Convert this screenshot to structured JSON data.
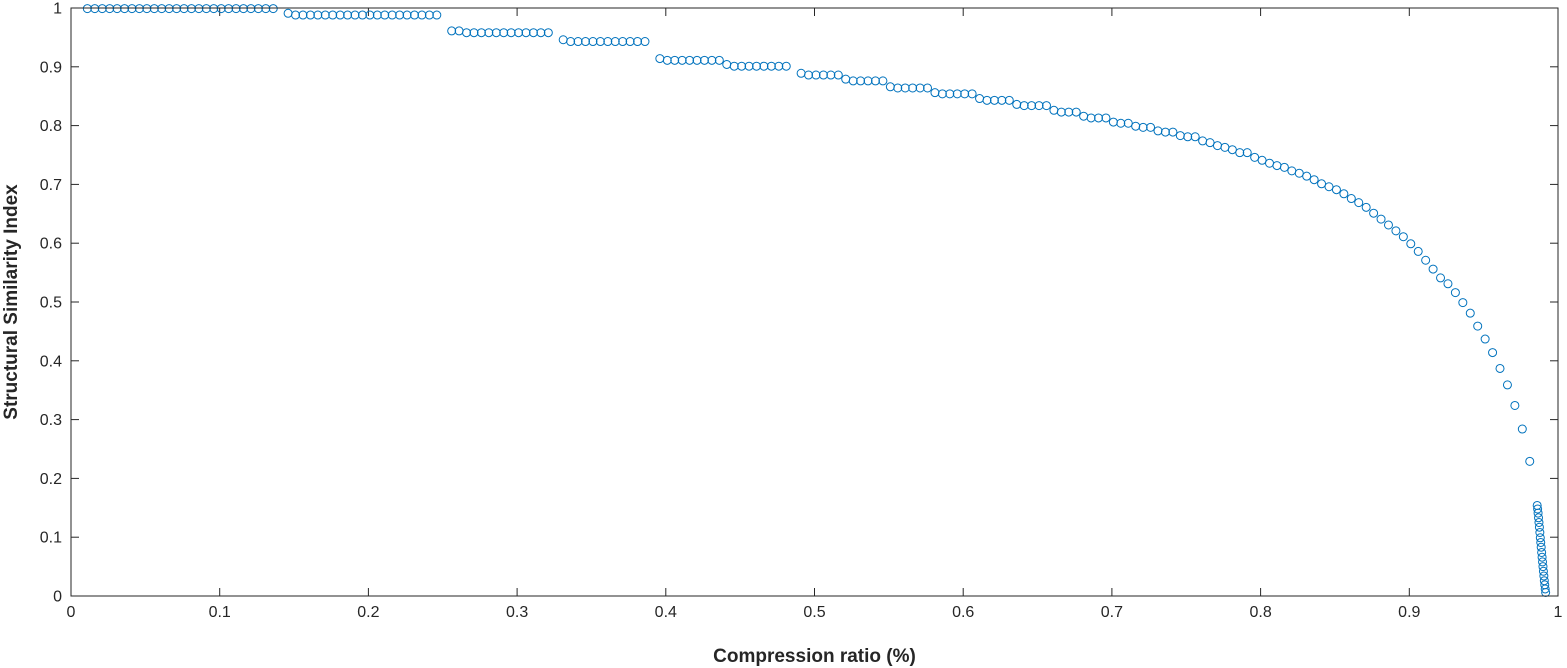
{
  "chart_data": {
    "type": "scatter",
    "xlabel": "Compression ratio (%)",
    "ylabel": "Structural Similarity Index",
    "xlim": [
      0,
      1
    ],
    "ylim": [
      0,
      1
    ],
    "xticks": [
      0,
      0.1,
      0.2,
      0.3,
      0.4,
      0.5,
      0.6,
      0.7,
      0.8,
      0.9,
      1
    ],
    "xtick_labels": [
      "0",
      "0.1",
      "0.2",
      "0.3",
      "0.4",
      "0.5",
      "0.6",
      "0.7",
      "0.8",
      "0.9",
      "1"
    ],
    "yticks": [
      0,
      0.1,
      0.2,
      0.3,
      0.4,
      0.5,
      0.6,
      0.7,
      0.8,
      0.9,
      1
    ],
    "ytick_labels": [
      "0",
      "0.1",
      "0.2",
      "0.3",
      "0.4",
      "0.5",
      "0.6",
      "0.7",
      "0.8",
      "0.9",
      "1"
    ],
    "grid": false,
    "box": true,
    "marker": "open-circle",
    "marker_color": "#0072bd",
    "series": [
      {
        "points": [
          [
            0.011,
            0.999
          ],
          [
            0.016,
            0.999
          ],
          [
            0.021,
            0.999
          ],
          [
            0.026,
            0.999
          ],
          [
            0.031,
            0.999
          ],
          [
            0.036,
            0.999
          ],
          [
            0.041,
            0.999
          ],
          [
            0.046,
            0.999
          ],
          [
            0.051,
            0.999
          ],
          [
            0.056,
            0.999
          ],
          [
            0.061,
            0.999
          ],
          [
            0.066,
            0.999
          ],
          [
            0.071,
            0.999
          ],
          [
            0.076,
            0.999
          ],
          [
            0.081,
            0.999
          ],
          [
            0.086,
            0.999
          ],
          [
            0.091,
            0.999
          ],
          [
            0.096,
            0.999
          ],
          [
            0.101,
            0.999
          ],
          [
            0.106,
            0.999
          ],
          [
            0.111,
            0.999
          ],
          [
            0.116,
            0.999
          ],
          [
            0.121,
            0.999
          ],
          [
            0.126,
            0.999
          ],
          [
            0.131,
            0.999
          ],
          [
            0.136,
            0.999
          ],
          [
            0.146,
            0.991
          ],
          [
            0.151,
            0.988
          ],
          [
            0.156,
            0.988
          ],
          [
            0.161,
            0.988
          ],
          [
            0.166,
            0.988
          ],
          [
            0.171,
            0.988
          ],
          [
            0.176,
            0.988
          ],
          [
            0.181,
            0.988
          ],
          [
            0.186,
            0.988
          ],
          [
            0.191,
            0.988
          ],
          [
            0.196,
            0.988
          ],
          [
            0.201,
            0.988
          ],
          [
            0.206,
            0.988
          ],
          [
            0.211,
            0.988
          ],
          [
            0.216,
            0.988
          ],
          [
            0.221,
            0.988
          ],
          [
            0.226,
            0.988
          ],
          [
            0.231,
            0.988
          ],
          [
            0.236,
            0.988
          ],
          [
            0.241,
            0.988
          ],
          [
            0.246,
            0.988
          ],
          [
            0.256,
            0.961
          ],
          [
            0.261,
            0.961
          ],
          [
            0.266,
            0.958
          ],
          [
            0.271,
            0.958
          ],
          [
            0.276,
            0.958
          ],
          [
            0.281,
            0.958
          ],
          [
            0.286,
            0.958
          ],
          [
            0.291,
            0.958
          ],
          [
            0.296,
            0.958
          ],
          [
            0.301,
            0.958
          ],
          [
            0.306,
            0.958
          ],
          [
            0.311,
            0.958
          ],
          [
            0.316,
            0.958
          ],
          [
            0.321,
            0.958
          ],
          [
            0.331,
            0.946
          ],
          [
            0.336,
            0.943
          ],
          [
            0.341,
            0.943
          ],
          [
            0.346,
            0.943
          ],
          [
            0.351,
            0.943
          ],
          [
            0.356,
            0.943
          ],
          [
            0.361,
            0.943
          ],
          [
            0.366,
            0.943
          ],
          [
            0.371,
            0.943
          ],
          [
            0.376,
            0.943
          ],
          [
            0.381,
            0.943
          ],
          [
            0.386,
            0.943
          ],
          [
            0.396,
            0.914
          ],
          [
            0.401,
            0.911
          ],
          [
            0.406,
            0.911
          ],
          [
            0.411,
            0.911
          ],
          [
            0.416,
            0.911
          ],
          [
            0.421,
            0.911
          ],
          [
            0.426,
            0.911
          ],
          [
            0.431,
            0.911
          ],
          [
            0.436,
            0.911
          ],
          [
            0.441,
            0.904
          ],
          [
            0.446,
            0.901
          ],
          [
            0.451,
            0.901
          ],
          [
            0.456,
            0.901
          ],
          [
            0.461,
            0.901
          ],
          [
            0.466,
            0.901
          ],
          [
            0.471,
            0.901
          ],
          [
            0.476,
            0.901
          ],
          [
            0.481,
            0.901
          ],
          [
            0.491,
            0.889
          ],
          [
            0.496,
            0.886
          ],
          [
            0.501,
            0.886
          ],
          [
            0.506,
            0.886
          ],
          [
            0.511,
            0.886
          ],
          [
            0.516,
            0.886
          ],
          [
            0.521,
            0.879
          ],
          [
            0.526,
            0.876
          ],
          [
            0.531,
            0.876
          ],
          [
            0.536,
            0.876
          ],
          [
            0.541,
            0.876
          ],
          [
            0.546,
            0.876
          ],
          [
            0.551,
            0.866
          ],
          [
            0.556,
            0.864
          ],
          [
            0.561,
            0.864
          ],
          [
            0.566,
            0.864
          ],
          [
            0.571,
            0.864
          ],
          [
            0.576,
            0.864
          ],
          [
            0.581,
            0.856
          ],
          [
            0.586,
            0.854
          ],
          [
            0.591,
            0.854
          ],
          [
            0.596,
            0.854
          ],
          [
            0.601,
            0.854
          ],
          [
            0.606,
            0.854
          ],
          [
            0.611,
            0.846
          ],
          [
            0.616,
            0.843
          ],
          [
            0.621,
            0.843
          ],
          [
            0.626,
            0.843
          ],
          [
            0.631,
            0.843
          ],
          [
            0.636,
            0.836
          ],
          [
            0.641,
            0.834
          ],
          [
            0.646,
            0.834
          ],
          [
            0.651,
            0.834
          ],
          [
            0.656,
            0.834
          ],
          [
            0.661,
            0.826
          ],
          [
            0.666,
            0.823
          ],
          [
            0.671,
            0.823
          ],
          [
            0.676,
            0.823
          ],
          [
            0.681,
            0.816
          ],
          [
            0.686,
            0.813
          ],
          [
            0.691,
            0.813
          ],
          [
            0.696,
            0.813
          ],
          [
            0.701,
            0.806
          ],
          [
            0.706,
            0.804
          ],
          [
            0.711,
            0.804
          ],
          [
            0.716,
            0.799
          ],
          [
            0.721,
            0.797
          ],
          [
            0.726,
            0.797
          ],
          [
            0.731,
            0.791
          ],
          [
            0.736,
            0.789
          ],
          [
            0.741,
            0.789
          ],
          [
            0.746,
            0.783
          ],
          [
            0.751,
            0.781
          ],
          [
            0.756,
            0.781
          ],
          [
            0.761,
            0.774
          ],
          [
            0.766,
            0.771
          ],
          [
            0.771,
            0.766
          ],
          [
            0.776,
            0.763
          ],
          [
            0.781,
            0.759
          ],
          [
            0.786,
            0.754
          ],
          [
            0.791,
            0.754
          ],
          [
            0.796,
            0.746
          ],
          [
            0.801,
            0.741
          ],
          [
            0.806,
            0.736
          ],
          [
            0.811,
            0.732
          ],
          [
            0.816,
            0.729
          ],
          [
            0.821,
            0.723
          ],
          [
            0.826,
            0.719
          ],
          [
            0.831,
            0.714
          ],
          [
            0.836,
            0.708
          ],
          [
            0.841,
            0.701
          ],
          [
            0.846,
            0.696
          ],
          [
            0.851,
            0.691
          ],
          [
            0.856,
            0.684
          ],
          [
            0.861,
            0.676
          ],
          [
            0.866,
            0.669
          ],
          [
            0.871,
            0.661
          ],
          [
            0.876,
            0.651
          ],
          [
            0.881,
            0.641
          ],
          [
            0.886,
            0.631
          ],
          [
            0.891,
            0.621
          ],
          [
            0.896,
            0.611
          ],
          [
            0.901,
            0.599
          ],
          [
            0.906,
            0.586
          ],
          [
            0.911,
            0.571
          ],
          [
            0.916,
            0.556
          ],
          [
            0.921,
            0.541
          ],
          [
            0.926,
            0.531
          ],
          [
            0.931,
            0.516
          ],
          [
            0.936,
            0.499
          ],
          [
            0.941,
            0.481
          ],
          [
            0.946,
            0.459
          ],
          [
            0.951,
            0.437
          ],
          [
            0.956,
            0.414
          ],
          [
            0.961,
            0.387
          ],
          [
            0.966,
            0.359
          ],
          [
            0.971,
            0.324
          ],
          [
            0.976,
            0.284
          ],
          [
            0.981,
            0.229
          ],
          [
            0.986,
            0.154
          ],
          [
            0.9863,
            0.148
          ],
          [
            0.9866,
            0.141
          ],
          [
            0.9869,
            0.133
          ],
          [
            0.9872,
            0.125
          ],
          [
            0.9875,
            0.117
          ],
          [
            0.9878,
            0.108
          ],
          [
            0.9881,
            0.099
          ],
          [
            0.9884,
            0.091
          ],
          [
            0.9887,
            0.083
          ],
          [
            0.989,
            0.074
          ],
          [
            0.9893,
            0.066
          ],
          [
            0.9896,
            0.058
          ],
          [
            0.9899,
            0.05
          ],
          [
            0.9902,
            0.042
          ],
          [
            0.9905,
            0.034
          ],
          [
            0.9908,
            0.026
          ],
          [
            0.9911,
            0.019
          ],
          [
            0.9914,
            0.012
          ],
          [
            0.9917,
            0.006
          ]
        ]
      }
    ]
  }
}
